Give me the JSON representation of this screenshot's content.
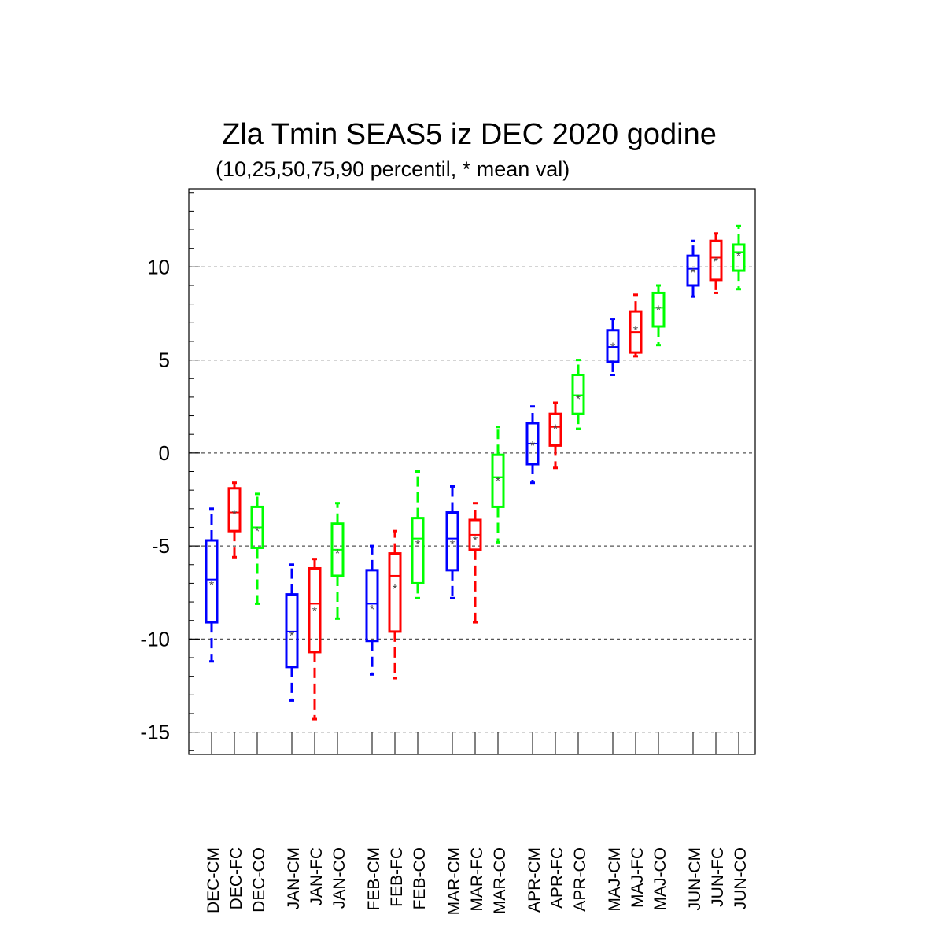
{
  "chart_data": {
    "type": "box",
    "title": "Zla Tmin SEAS5 iz DEC 2020 godine",
    "subtitle": "(10,25,50,75,90 percentil, * mean val)",
    "ylim": [
      -16.2,
      14.2
    ],
    "yticks": [
      10,
      5,
      0,
      -5,
      -10,
      -15
    ],
    "ytick_labels": [
      "10",
      "5",
      "0",
      "-5",
      "-10",
      "-15"
    ],
    "grid": "horizontal dashed at major ticks",
    "colors": {
      "CM": "#0000ff",
      "FC": "#ff0000",
      "CO": "#00ff00"
    },
    "groups": [
      "DEC",
      "JAN",
      "FEB",
      "MAR",
      "APR",
      "MAJ",
      "JUN"
    ],
    "categories": [
      "DEC-CM",
      "DEC-FC",
      "DEC-CO",
      "JAN-CM",
      "JAN-FC",
      "JAN-CO",
      "FEB-CM",
      "FEB-FC",
      "FEB-CO",
      "MAR-CM",
      "MAR-FC",
      "MAR-CO",
      "APR-CM",
      "APR-FC",
      "APR-CO",
      "MAJ-CM",
      "MAJ-FC",
      "MAJ-CO",
      "JUN-CM",
      "JUN-FC",
      "JUN-CO"
    ],
    "series_type": [
      "CM",
      "FC",
      "CO",
      "CM",
      "FC",
      "CO",
      "CM",
      "FC",
      "CO",
      "CM",
      "FC",
      "CO",
      "CM",
      "FC",
      "CO",
      "CM",
      "FC",
      "CO",
      "CM",
      "FC",
      "CO"
    ],
    "p10": [
      -11.2,
      -5.6,
      -8.1,
      -13.3,
      -14.3,
      -8.9,
      -11.9,
      -12.1,
      -7.8,
      -7.8,
      -9.1,
      -4.8,
      -1.6,
      -0.8,
      1.3,
      4.2,
      5.2,
      5.8,
      8.4,
      8.6,
      8.8
    ],
    "p25": [
      -9.1,
      -4.2,
      -5.1,
      -11.5,
      -10.7,
      -6.6,
      -10.1,
      -9.6,
      -7.0,
      -6.3,
      -5.2,
      -2.9,
      -0.6,
      0.4,
      2.1,
      4.9,
      5.4,
      6.8,
      9.0,
      9.3,
      9.8
    ],
    "p50": [
      -6.8,
      -3.2,
      -4.0,
      -9.6,
      -8.1,
      -5.2,
      -8.1,
      -6.6,
      -4.6,
      -4.6,
      -4.4,
      -1.3,
      0.5,
      1.4,
      3.1,
      5.7,
      6.5,
      7.8,
      9.9,
      10.5,
      10.8
    ],
    "p75": [
      -4.7,
      -1.9,
      -2.9,
      -7.6,
      -6.2,
      -3.8,
      -6.3,
      -5.4,
      -3.5,
      -3.2,
      -3.6,
      -0.1,
      1.6,
      2.1,
      4.2,
      6.6,
      7.6,
      8.6,
      10.6,
      11.4,
      11.2
    ],
    "p90": [
      -3.0,
      -1.6,
      -2.2,
      -6.0,
      -5.7,
      -2.7,
      -5.0,
      -4.2,
      -1.0,
      -1.8,
      -2.7,
      1.4,
      2.5,
      2.7,
      5.0,
      7.2,
      8.5,
      9.0,
      11.4,
      11.8,
      12.2
    ],
    "mean": [
      -7.0,
      -3.2,
      -4.1,
      -9.7,
      -8.4,
      -5.3,
      -8.3,
      -7.2,
      -4.8,
      -4.8,
      -4.6,
      -1.4,
      0.5,
      1.4,
      3.0,
      5.8,
      6.7,
      7.8,
      9.8,
      10.4,
      10.7
    ]
  }
}
